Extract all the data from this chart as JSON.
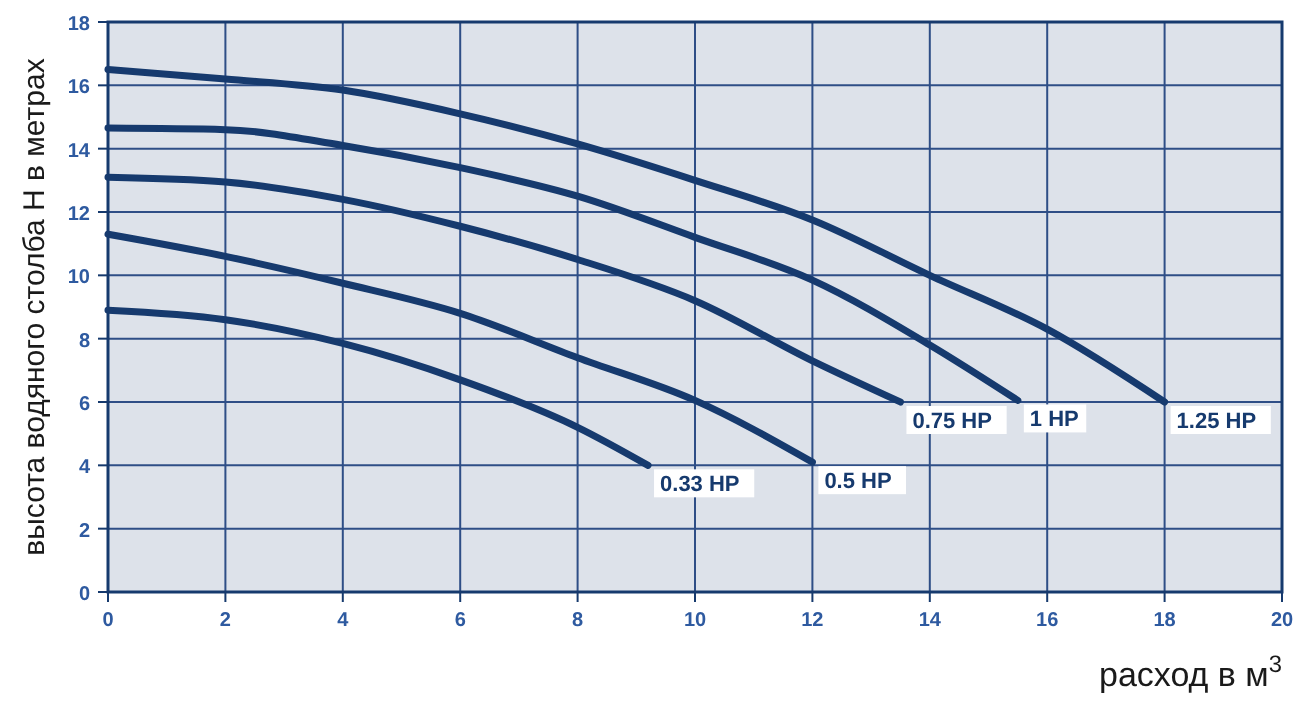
{
  "chart_data": {
    "type": "line",
    "xlabel": "расход в м$^{3}$",
    "ylabel": "высота водяного столба Н в метрах",
    "xlim": [
      0,
      20
    ],
    "ylim": [
      0,
      18
    ],
    "xticks": [
      0,
      2,
      4,
      6,
      8,
      10,
      12,
      14,
      16,
      18,
      20
    ],
    "yticks": [
      0,
      2,
      4,
      6,
      8,
      10,
      12,
      14,
      16,
      18
    ],
    "grid": true,
    "marker": "none",
    "line_style": "solid",
    "series": [
      {
        "name": "0.33 HP",
        "color": "#163a6e",
        "x": [
          0,
          2,
          4,
          6,
          8,
          9.2
        ],
        "values": [
          8.9,
          8.6,
          7.85,
          6.7,
          5.2,
          4.0
        ]
      },
      {
        "name": "0.5 HP",
        "color": "#163a6e",
        "x": [
          0,
          2,
          4,
          6,
          8,
          10,
          12
        ],
        "values": [
          11.3,
          10.6,
          9.75,
          8.8,
          7.4,
          6.05,
          4.1
        ]
      },
      {
        "name": "0.75 HP",
        "color": "#163a6e",
        "x": [
          0,
          2,
          4,
          6,
          8,
          10,
          12,
          13.5
        ],
        "values": [
          13.1,
          12.95,
          12.4,
          11.55,
          10.5,
          9.2,
          7.3,
          6.0
        ]
      },
      {
        "name": "1 HP",
        "color": "#163a6e",
        "x": [
          0,
          2,
          4,
          6,
          8,
          10,
          12,
          14,
          15.5
        ],
        "values": [
          14.65,
          14.6,
          14.1,
          13.4,
          12.5,
          11.2,
          9.85,
          7.8,
          6.05
        ]
      },
      {
        "name": "1.25 HP",
        "color": "#163a6e",
        "x": [
          0,
          2,
          4,
          6,
          8,
          10,
          12,
          14,
          16,
          18
        ],
        "values": [
          16.5,
          16.2,
          15.85,
          15.1,
          14.15,
          13.0,
          11.75,
          10.0,
          8.3,
          6.0
        ]
      }
    ]
  }
}
